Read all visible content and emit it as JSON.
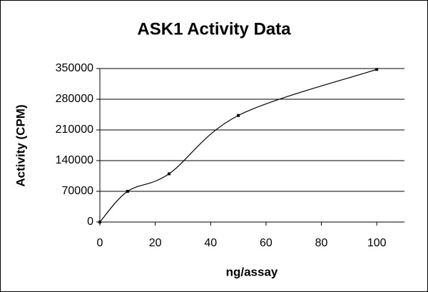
{
  "chart_data": {
    "type": "line",
    "title": "ASK1 Activity Data",
    "x_label": "ng/assay",
    "y_label": "Activity (CPM)",
    "x": [
      0,
      10,
      25,
      50,
      100
    ],
    "series": [
      {
        "name": "ASK1",
        "color": "#000000",
        "values": [
          0,
          70000,
          110000,
          243000,
          348000
        ]
      }
    ],
    "smooth": true,
    "xlim": [
      0,
      110
    ],
    "xticks": [
      0,
      20,
      40,
      60,
      80,
      100
    ],
    "ylim": [
      0,
      350000
    ],
    "yticks": [
      0,
      70000,
      140000,
      210000,
      280000,
      350000
    ],
    "grid": true
  }
}
